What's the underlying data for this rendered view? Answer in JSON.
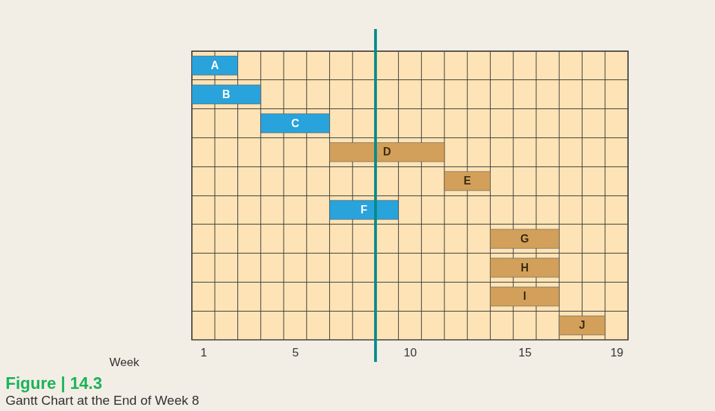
{
  "chart_data": {
    "type": "bar",
    "orientation": "horizontal",
    "title": "Figure | 14.3",
    "subtitle": "Gantt Chart at the End of Week 8",
    "xlabel": "Week",
    "categories": [
      "A",
      "B",
      "C",
      "D",
      "E",
      "F",
      "G",
      "H",
      "I",
      "J"
    ],
    "base": [
      0.5,
      0.5,
      3.5,
      6.5,
      11.5,
      6.5,
      13.5,
      13.5,
      13.5,
      16.5
    ],
    "values": [
      2,
      3,
      3,
      5,
      2,
      3,
      3,
      3,
      3,
      2
    ],
    "colors": [
      "#29a3dc",
      "#29a3dc",
      "#29a3dc",
      "#d2a05a",
      "#d2a05a",
      "#29a3dc",
      "#d2a05a",
      "#d2a05a",
      "#d2a05a",
      "#d2a05a"
    ],
    "xlim": [
      0.5,
      19.5
    ],
    "xticks": [
      1,
      5,
      10,
      15,
      19
    ],
    "grid": true,
    "tick_labels": "x",
    "ref_lines": [
      {
        "axis": "x",
        "value": 8.5,
        "color": "#008b8b"
      }
    ]
  }
}
